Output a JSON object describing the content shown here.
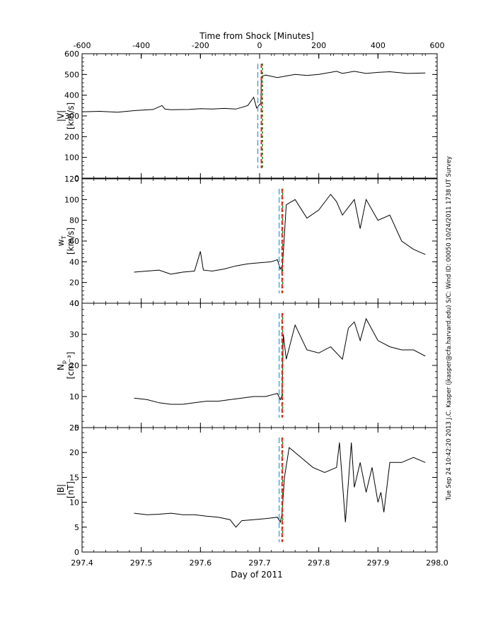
{
  "top_axis": {
    "title": "Time from Shock [Minutes]",
    "ticks": [
      "-600",
      "-400",
      "-200",
      "0",
      "200",
      "400",
      "600"
    ]
  },
  "bottom_axis": {
    "title": "Day of 2011",
    "ticks": [
      "297.4",
      "297.5",
      "297.6",
      "297.7",
      "297.8",
      "297.9",
      "298.0"
    ]
  },
  "side_text": "Tue Sep 24 10:42:20 2013  J.C. Kasper (jkasper@cfa.harvard.edu)  S/C: Wind  ID: 00050  10/24/2011  1738 UT Survey",
  "colors": {
    "line": "#000000",
    "dashed_cyan": "#1a9fd8",
    "dashed_red": "#e8281e",
    "dashed_green": "#1a8a1a"
  },
  "chart_data": [
    {
      "type": "line",
      "ylabel_main": "|V|",
      "ylabel_unit": "[km/s]",
      "ylim": [
        0,
        600
      ],
      "yticks": [
        "0",
        "100",
        "200",
        "300",
        "400",
        "500",
        "600"
      ],
      "xlim": [
        297.4,
        298.0
      ],
      "shock_lines_day": {
        "cyan": 297.697,
        "red": 297.703,
        "green": 297.705
      },
      "x": [
        297.4,
        297.43,
        297.46,
        297.49,
        297.52,
        297.535,
        297.54,
        297.55,
        297.58,
        297.6,
        297.62,
        297.64,
        297.66,
        297.68,
        297.69,
        297.695,
        297.7,
        297.702,
        297.703,
        297.71,
        297.73,
        297.76,
        297.78,
        297.8,
        297.83,
        297.84,
        297.86,
        297.88,
        297.9,
        297.92,
        297.95,
        297.98
      ],
      "values": [
        320,
        322,
        318,
        326,
        331,
        350,
        333,
        330,
        331,
        335,
        333,
        336,
        333,
        350,
        390,
        338,
        355,
        360,
        490,
        497,
        485,
        500,
        495,
        500,
        515,
        505,
        515,
        505,
        510,
        513,
        505,
        507
      ]
    },
    {
      "type": "line",
      "ylabel_main": "w",
      "ylabel_sub": "T",
      "ylabel_unit": "[km/s]",
      "ylim": [
        0,
        120
      ],
      "yticks": [
        "0",
        "20",
        "40",
        "60",
        "80",
        "100",
        "120"
      ],
      "xlim": [
        297.4,
        298.0
      ],
      "shock_lines_day": {
        "cyan": 297.733,
        "red": 297.738,
        "green": 297.739
      },
      "x": [
        297.488,
        297.51,
        297.53,
        297.55,
        297.57,
        297.59,
        297.6,
        297.605,
        297.62,
        297.64,
        297.66,
        297.68,
        297.7,
        297.72,
        297.73,
        297.735,
        297.737,
        297.738,
        297.745,
        297.76,
        297.78,
        297.8,
        297.82,
        297.83,
        297.84,
        297.86,
        297.87,
        297.88,
        297.9,
        297.92,
        297.94,
        297.96,
        297.98
      ],
      "values": [
        30,
        31,
        32,
        28,
        30,
        31,
        50,
        32,
        31,
        33,
        36,
        38,
        39,
        40,
        42,
        33,
        35,
        30,
        95,
        100,
        82,
        90,
        105,
        98,
        85,
        100,
        72,
        100,
        80,
        85,
        60,
        52,
        47
      ]
    },
    {
      "type": "line",
      "ylabel_main": "N",
      "ylabel_sub": "p",
      "ylabel_unit": "[cm⁻³]",
      "ylim": [
        0,
        40
      ],
      "yticks": [
        "0",
        "10",
        "20",
        "30",
        "40"
      ],
      "xlim": [
        297.4,
        298.0
      ],
      "shock_lines_day": {
        "cyan": 297.733,
        "red": 297.738,
        "green": 297.739
      },
      "x": [
        297.488,
        297.51,
        297.53,
        297.55,
        297.57,
        297.59,
        297.61,
        297.63,
        297.65,
        297.67,
        297.69,
        297.71,
        297.73,
        297.735,
        297.738,
        297.74,
        297.745,
        297.76,
        297.78,
        297.8,
        297.82,
        297.84,
        297.85,
        297.86,
        297.87,
        297.88,
        297.9,
        297.92,
        297.94,
        297.96,
        297.98
      ],
      "values": [
        9.5,
        9,
        8,
        7.5,
        7.5,
        8,
        8.5,
        8.5,
        9,
        9.5,
        10,
        10,
        11,
        9,
        10.5,
        30,
        22,
        33,
        25,
        24,
        26,
        22,
        32,
        34,
        28,
        35,
        28,
        26,
        25,
        25,
        23
      ]
    },
    {
      "type": "line",
      "ylabel_main": "|B|",
      "ylabel_unit": "[nT]",
      "ylim": [
        0,
        25
      ],
      "yticks": [
        "0",
        "5",
        "10",
        "15",
        "20",
        "25"
      ],
      "xlim": [
        297.4,
        298.0
      ],
      "shock_lines_day": {
        "cyan": 297.733,
        "red": 297.738,
        "green": 297.739
      },
      "x": [
        297.488,
        297.51,
        297.53,
        297.55,
        297.57,
        297.59,
        297.61,
        297.63,
        297.65,
        297.66,
        297.67,
        297.69,
        297.71,
        297.73,
        297.735,
        297.738,
        297.742,
        297.75,
        297.77,
        297.79,
        297.81,
        297.83,
        297.835,
        297.845,
        297.855,
        297.86,
        297.87,
        297.88,
        297.89,
        297.9,
        297.905,
        297.91,
        297.92,
        297.94,
        297.96,
        297.98
      ],
      "values": [
        7.8,
        7.5,
        7.6,
        7.8,
        7.5,
        7.5,
        7.2,
        7.0,
        6.5,
        5.0,
        6.3,
        6.5,
        6.7,
        7.0,
        6.0,
        7.8,
        15,
        21,
        19,
        17,
        16,
        17,
        22,
        6,
        22,
        13,
        18,
        12,
        17,
        10,
        12,
        8,
        18,
        18,
        19,
        18
      ]
    }
  ]
}
